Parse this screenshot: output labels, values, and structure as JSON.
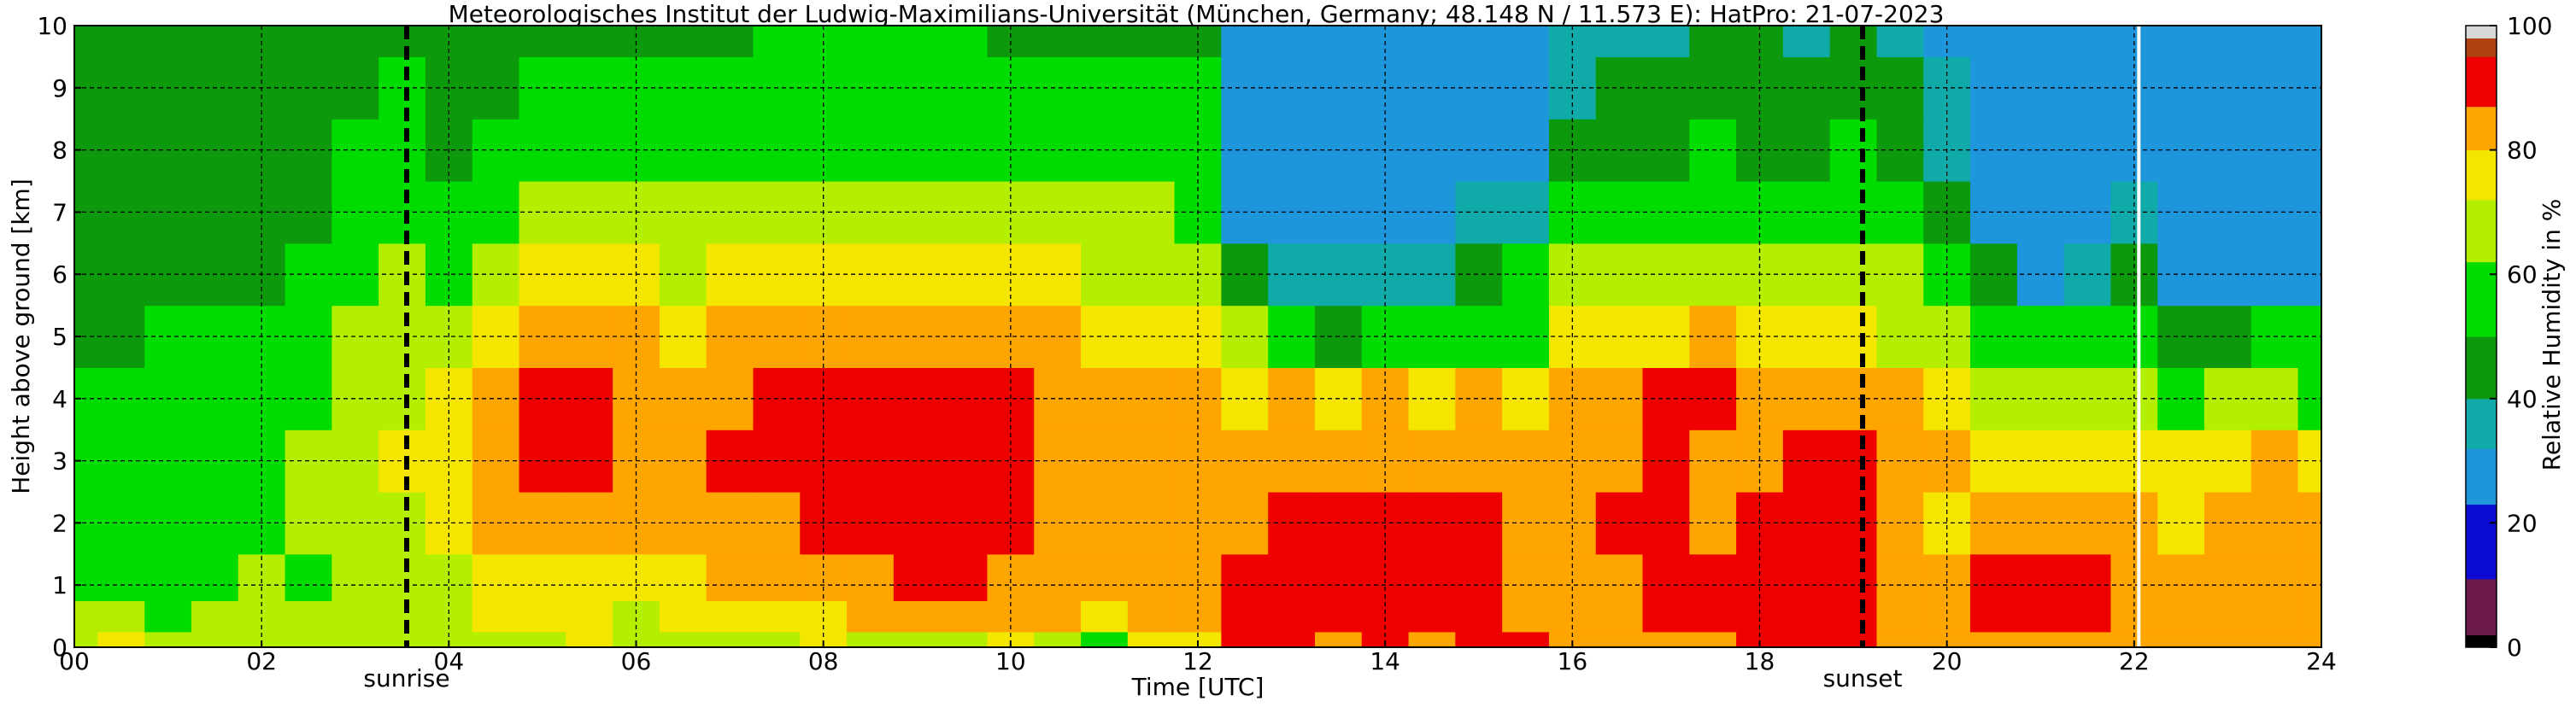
{
  "chart_data": {
    "type": "heatmap",
    "title": "Meteorologisches Institut der Ludwig-Maximilians-Universität (München, Germany; 48.148 N / 11.573 E):    HatPro: 21-07-2023",
    "xlabel": "Time [UTC]",
    "ylabel": "Height above ground [km]",
    "colorbar_label": "Relative Humidity in %",
    "xlim": [
      0,
      24
    ],
    "ylim": [
      0,
      10
    ],
    "x_ticks": [
      0,
      2,
      4,
      6,
      8,
      10,
      12,
      14,
      16,
      18,
      20,
      22,
      24
    ],
    "x_tick_labels": [
      "00",
      "02",
      "04",
      "06",
      "08",
      "10",
      "12",
      "14",
      "16",
      "18",
      "20",
      "22",
      "24"
    ],
    "y_ticks": [
      0,
      1,
      2,
      3,
      4,
      5,
      6,
      7,
      8,
      9,
      10
    ],
    "y_tick_labels": [
      "0",
      "1",
      "2",
      "3",
      "4",
      "5",
      "6",
      "7",
      "8",
      "9",
      "10"
    ],
    "colorbar_ticks": [
      0,
      20,
      40,
      60,
      80,
      100
    ],
    "colorbar_tick_labels": [
      "0",
      "20",
      "40",
      "60",
      "80",
      "100"
    ],
    "grid": true,
    "sunrise": {
      "time": 3.55,
      "label": "sunrise"
    },
    "sunset": {
      "time": 19.1,
      "label": "sunset"
    },
    "data_gap_time": 22.05,
    "colormap": [
      {
        "from": 0,
        "to": 2,
        "color": "#000000"
      },
      {
        "from": 2,
        "to": 11,
        "color": "#6b1a4a"
      },
      {
        "from": 11,
        "to": 23,
        "color": "#0a0ad2"
      },
      {
        "from": 23,
        "to": 32,
        "color": "#1e96dc"
      },
      {
        "from": 32,
        "to": 40,
        "color": "#10aaa8"
      },
      {
        "from": 40,
        "to": 50,
        "color": "#0c9a0c"
      },
      {
        "from": 50,
        "to": 62,
        "color": "#00dc00"
      },
      {
        "from": 62,
        "to": 72,
        "color": "#b4ee00"
      },
      {
        "from": 72,
        "to": 80,
        "color": "#f5e600"
      },
      {
        "from": 80,
        "to": 87,
        "color": "#ffa500"
      },
      {
        "from": 87,
        "to": 95,
        "color": "#ee0000"
      },
      {
        "from": 95,
        "to": 98,
        "color": "#b04010"
      },
      {
        "from": 98,
        "to": 100,
        "color": "#d8d8d8"
      }
    ],
    "time_hours": [
      0,
      0.5,
      1,
      1.5,
      2,
      2.5,
      3,
      3.5,
      4,
      4.5,
      5,
      5.5,
      6,
      6.5,
      7,
      7.5,
      8,
      8.5,
      9,
      9.5,
      10,
      10.5,
      11,
      11.5,
      12,
      12.5,
      13,
      13.5,
      14,
      14.5,
      15,
      15.5,
      16,
      16.5,
      17,
      17.5,
      18,
      18.5,
      19,
      19.5,
      20,
      20.5,
      21,
      21.5,
      22,
      22.5,
      23,
      23.5,
      24
    ],
    "heights_km": [
      0,
      0.5,
      1,
      2,
      3,
      4,
      5,
      6,
      7,
      8,
      9,
      10
    ],
    "rh_percent": [
      [
        66,
        72,
        64,
        70,
        66,
        68,
        66,
        68,
        64,
        66,
        66,
        74,
        66,
        68,
        70,
        66,
        72,
        68,
        70,
        66,
        74,
        70,
        60,
        72,
        72,
        88,
        90,
        85,
        88,
        86,
        88,
        90,
        84,
        82,
        80,
        84,
        90,
        92,
        92,
        86,
        80,
        84,
        82,
        86,
        80,
        80,
        80,
        80,
        80
      ],
      [
        62,
        68,
        60,
        66,
        62,
        64,
        62,
        64,
        66,
        74,
        76,
        78,
        70,
        74,
        76,
        76,
        78,
        80,
        84,
        86,
        80,
        82,
        78,
        80,
        82,
        92,
        94,
        88,
        90,
        89,
        94,
        86,
        84,
        84,
        88,
        90,
        92,
        94,
        94,
        84,
        80,
        88,
        90,
        90,
        82,
        80,
        80,
        82,
        80
      ],
      [
        60,
        60,
        60,
        60,
        62,
        60,
        62,
        64,
        68,
        72,
        78,
        78,
        76,
        78,
        80,
        82,
        84,
        86,
        88,
        90,
        86,
        86,
        84,
        84,
        85,
        92,
        94,
        90,
        90,
        90,
        92,
        86,
        86,
        86,
        90,
        88,
        92,
        94,
        93,
        84,
        82,
        88,
        90,
        90,
        84,
        80,
        80,
        82,
        80
      ],
      [
        56,
        58,
        58,
        58,
        60,
        62,
        64,
        68,
        74,
        80,
        84,
        84,
        82,
        84,
        86,
        86,
        88,
        90,
        92,
        90,
        88,
        84,
        82,
        82,
        82,
        86,
        88,
        88,
        90,
        88,
        88,
        84,
        86,
        88,
        90,
        86,
        88,
        90,
        88,
        84,
        78,
        84,
        86,
        86,
        82,
        78,
        80,
        82,
        80
      ],
      [
        54,
        54,
        56,
        56,
        58,
        62,
        66,
        72,
        76,
        84,
        90,
        89,
        86,
        86,
        88,
        88,
        90,
        92,
        94,
        92,
        90,
        86,
        84,
        84,
        86,
        84,
        84,
        82,
        84,
        84,
        84,
        80,
        82,
        84,
        88,
        86,
        86,
        88,
        88,
        84,
        80,
        76,
        76,
        78,
        78,
        76,
        78,
        80,
        78
      ],
      [
        52,
        52,
        54,
        54,
        58,
        60,
        66,
        70,
        72,
        84,
        92,
        89,
        84,
        84,
        86,
        88,
        90,
        92,
        92,
        92,
        90,
        86,
        84,
        84,
        86,
        78,
        80,
        76,
        80,
        76,
        80,
        76,
        80,
        84,
        90,
        88,
        84,
        84,
        86,
        80,
        76,
        70,
        62,
        66,
        68,
        60,
        62,
        64,
        58
      ],
      [
        46,
        48,
        50,
        50,
        54,
        58,
        64,
        68,
        66,
        78,
        86,
        84,
        80,
        78,
        80,
        82,
        84,
        86,
        86,
        86,
        84,
        82,
        78,
        76,
        78,
        66,
        56,
        48,
        56,
        52,
        60,
        58,
        72,
        76,
        78,
        82,
        76,
        74,
        78,
        70,
        64,
        54,
        52,
        50,
        56,
        48,
        46,
        52,
        50
      ],
      [
        42,
        42,
        44,
        44,
        48,
        52,
        58,
        62,
        58,
        70,
        76,
        74,
        72,
        70,
        72,
        74,
        76,
        78,
        78,
        78,
        76,
        72,
        70,
        68,
        68,
        46,
        32,
        32,
        38,
        36,
        48,
        50,
        62,
        64,
        66,
        70,
        64,
        62,
        66,
        62,
        54,
        40,
        30,
        32,
        42,
        30,
        26,
        28,
        30
      ],
      [
        44,
        42,
        42,
        44,
        46,
        48,
        52,
        56,
        50,
        58,
        64,
        64,
        64,
        62,
        64,
        66,
        68,
        70,
        70,
        70,
        66,
        64,
        62,
        62,
        60,
        28,
        24,
        24,
        30,
        24,
        34,
        34,
        52,
        56,
        58,
        60,
        56,
        52,
        58,
        50,
        44,
        30,
        28,
        28,
        36,
        26,
        24,
        24,
        26
      ],
      [
        48,
        44,
        42,
        44,
        46,
        48,
        50,
        52,
        46,
        52,
        56,
        56,
        56,
        54,
        56,
        58,
        58,
        60,
        60,
        60,
        58,
        56,
        56,
        54,
        54,
        24,
        24,
        24,
        26,
        24,
        28,
        28,
        42,
        46,
        48,
        50,
        48,
        46,
        50,
        44,
        36,
        28,
        26,
        26,
        30,
        24,
        24,
        24,
        24
      ],
      [
        48,
        44,
        42,
        44,
        44,
        46,
        48,
        50,
        44,
        48,
        50,
        52,
        50,
        50,
        52,
        52,
        54,
        54,
        54,
        54,
        52,
        50,
        50,
        50,
        50,
        24,
        24,
        24,
        24,
        24,
        26,
        26,
        36,
        40,
        42,
        44,
        42,
        40,
        44,
        40,
        32,
        26,
        26,
        26,
        28,
        24,
        24,
        24,
        24
      ],
      [
        46,
        42,
        40,
        42,
        42,
        44,
        46,
        48,
        42,
        46,
        48,
        48,
        48,
        48,
        48,
        50,
        50,
        50,
        50,
        50,
        48,
        48,
        48,
        48,
        48,
        24,
        24,
        24,
        24,
        24,
        24,
        24,
        32,
        36,
        38,
        40,
        40,
        38,
        40,
        36,
        30,
        26,
        26,
        26,
        26,
        24,
        24,
        24,
        24
      ]
    ]
  }
}
